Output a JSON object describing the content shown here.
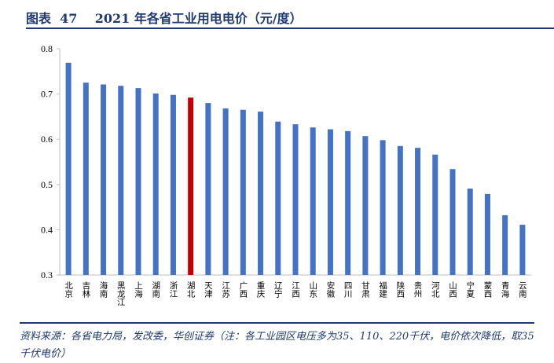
{
  "title": "图表  47    2021 年各省工业用电电价（元/度）",
  "source": "资料来源：各省电力局，发改委，华创证券（注：各工业园区电压多为35、110、220千伏，电价依次降低，取35千伏电价）",
  "chart_data": {
    "type": "bar",
    "title": "2021 年各省工业用电电价（元/度）",
    "xlabel": "",
    "ylabel": "",
    "ylim": [
      0.3,
      0.8
    ],
    "yticks": [
      "0.3",
      "0.4",
      "0.5",
      "0.6",
      "0.7",
      "0.8"
    ],
    "grid": false,
    "legend": "none",
    "categories": [
      "北京",
      "吉林",
      "海南",
      "黑龙江",
      "上海",
      "湖南",
      "浙江",
      "湖北",
      "天津",
      "江苏",
      "广西",
      "重庆",
      "辽宁",
      "江西",
      "山东",
      "安徽",
      "四川",
      "甘肃",
      "福建",
      "陕西",
      "贵州",
      "河北",
      "山西",
      "宁夏",
      "蒙西",
      "青海",
      "云南"
    ],
    "values": [
      0.769,
      0.725,
      0.721,
      0.718,
      0.713,
      0.701,
      0.698,
      0.692,
      0.68,
      0.668,
      0.665,
      0.661,
      0.639,
      0.633,
      0.626,
      0.622,
      0.618,
      0.607,
      0.598,
      0.585,
      0.581,
      0.566,
      0.534,
      0.491,
      0.479,
      0.432,
      0.411
    ],
    "bar_color": "#4472c4",
    "highlight_category": "湖北",
    "highlight_color": "#c00000"
  }
}
